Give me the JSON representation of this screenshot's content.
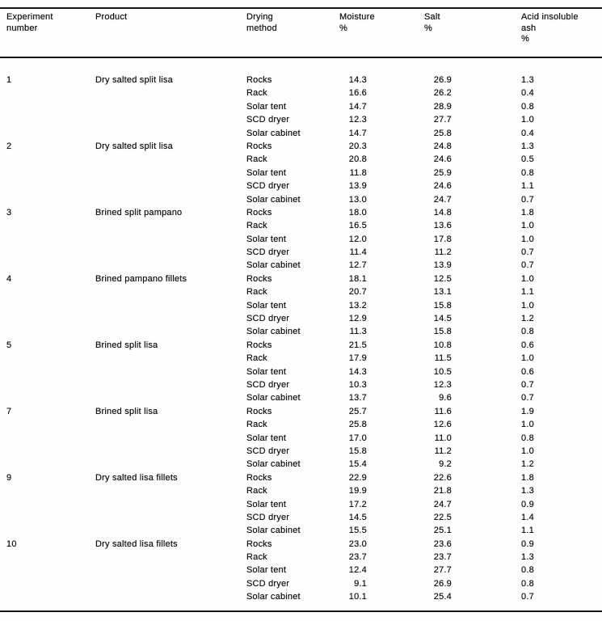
{
  "table": {
    "columns": [
      "Experiment\nnumber",
      "Product",
      "Drying\nmethod",
      "Moisture\n%",
      "Salt\n%",
      "Acid insoluble\nash\n%"
    ],
    "experiments": [
      {
        "number": "1",
        "product": "Dry salted split lisa",
        "rows": [
          {
            "method": "Rocks",
            "moisture": "14.3",
            "salt": "26.9",
            "ash": "1.3"
          },
          {
            "method": "Rack",
            "moisture": "16.6",
            "salt": "26.2",
            "ash": "0.4"
          },
          {
            "method": "Solar tent",
            "moisture": "14.7",
            "salt": "28.9",
            "ash": "0.8"
          },
          {
            "method": "SCD dryer",
            "moisture": "12.3",
            "salt": "27.7",
            "ash": "1.0"
          },
          {
            "method": "Solar cabinet",
            "moisture": "14.7",
            "salt": "25.8",
            "ash": "0.4"
          }
        ]
      },
      {
        "number": "2",
        "product": "Dry salted split lisa",
        "rows": [
          {
            "method": "Rocks",
            "moisture": "20.3",
            "salt": "24.8",
            "ash": "1.3"
          },
          {
            "method": "Rack",
            "moisture": "20.8",
            "salt": "24.6",
            "ash": "0.5"
          },
          {
            "method": "Solar tent",
            "moisture": "11.8",
            "salt": "25.9",
            "ash": "0.8"
          },
          {
            "method": "SCD dryer",
            "moisture": "13.9",
            "salt": "24.6",
            "ash": "1.1"
          },
          {
            "method": "Solar cabinet",
            "moisture": "13.0",
            "salt": "24.7",
            "ash": "0.7"
          }
        ]
      },
      {
        "number": "3",
        "product": "Brined split pampano",
        "rows": [
          {
            "method": "Rocks",
            "moisture": "18.0",
            "salt": "14.8",
            "ash": "1.8"
          },
          {
            "method": "Rack",
            "moisture": "16.5",
            "salt": "13.6",
            "ash": "1.0"
          },
          {
            "method": "Solar tent",
            "moisture": "12.0",
            "salt": "17.8",
            "ash": "1.0"
          },
          {
            "method": "SCD dryer",
            "moisture": "11.4",
            "salt": "11.2",
            "ash": "0.7"
          },
          {
            "method": "Solar cabinet",
            "moisture": "12.7",
            "salt": "13.9",
            "ash": "0.7"
          }
        ]
      },
      {
        "number": "4",
        "product": "Brined pampano fillets",
        "rows": [
          {
            "method": "Rocks",
            "moisture": "18.1",
            "salt": "12.5",
            "ash": "1.0"
          },
          {
            "method": "Rack",
            "moisture": "20.7",
            "salt": "13.1",
            "ash": "1.1"
          },
          {
            "method": "Solar tent",
            "moisture": "13.2",
            "salt": "15.8",
            "ash": "1.0"
          },
          {
            "method": "SCD dryer",
            "moisture": "12.9",
            "salt": "14.5",
            "ash": "1.2"
          },
          {
            "method": "Solar cabinet",
            "moisture": "11.3",
            "salt": "15.8",
            "ash": "0.8"
          }
        ]
      },
      {
        "number": "5",
        "product": "Brined split lisa",
        "rows": [
          {
            "method": "Rocks",
            "moisture": "21.5",
            "salt": "10.8",
            "ash": "0.6"
          },
          {
            "method": "Rack",
            "moisture": "17.9",
            "salt": "11.5",
            "ash": "1.0"
          },
          {
            "method": "Solar tent",
            "moisture": "14.3",
            "salt": "10.5",
            "ash": "0.6"
          },
          {
            "method": "SCD dryer",
            "moisture": "10.3",
            "salt": "12.3",
            "ash": "0.7"
          },
          {
            "method": "Solar cabinet",
            "moisture": "13.7",
            "salt": "9.6",
            "ash": "0.7"
          }
        ]
      },
      {
        "number": "7",
        "product": "Brined split lisa",
        "rows": [
          {
            "method": "Rocks",
            "moisture": "25.7",
            "salt": "11.6",
            "ash": "1.9"
          },
          {
            "method": "Rack",
            "moisture": "25.8",
            "salt": "12.6",
            "ash": "1.0"
          },
          {
            "method": "Solar tent",
            "moisture": "17.0",
            "salt": "11.0",
            "ash": "0.8"
          },
          {
            "method": "SCD dryer",
            "moisture": "15.8",
            "salt": "11.2",
            "ash": "1.0"
          },
          {
            "method": "Solar cabinet",
            "moisture": "15.4",
            "salt": "9.2",
            "ash": "1.2"
          }
        ]
      },
      {
        "number": "9",
        "product": "Dry salted lisa fillets",
        "rows": [
          {
            "method": "Rocks",
            "moisture": "22.9",
            "salt": "22.6",
            "ash": "1.8"
          },
          {
            "method": "Rack",
            "moisture": "19.9",
            "salt": "21.8",
            "ash": "1.3"
          },
          {
            "method": "Solar tent",
            "moisture": "17.2",
            "salt": "24.7",
            "ash": "0.9"
          },
          {
            "method": "SCD dryer",
            "moisture": "14.5",
            "salt": "22.5",
            "ash": "1.4"
          },
          {
            "method": "Solar cabinet",
            "moisture": "15.5",
            "salt": "25.1",
            "ash": "1.1"
          }
        ]
      },
      {
        "number": "10",
        "product": "Dry salted lisa fillets",
        "rows": [
          {
            "method": "Rocks",
            "moisture": "23.0",
            "salt": "23.6",
            "ash": "0.9"
          },
          {
            "method": "Rack",
            "moisture": "23.7",
            "salt": "23.7",
            "ash": "1.3"
          },
          {
            "method": "Solar tent",
            "moisture": "12.4",
            "salt": "27.7",
            "ash": "0.8"
          },
          {
            "method": "SCD dryer",
            "moisture": "9.1",
            "salt": "26.9",
            "ash": "0.8"
          },
          {
            "method": "Solar cabinet",
            "moisture": "10.1",
            "salt": "25.4",
            "ash": "0.7"
          }
        ]
      }
    ]
  }
}
